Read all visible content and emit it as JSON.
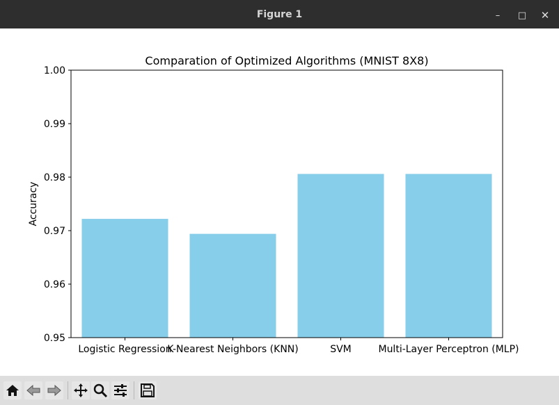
{
  "window": {
    "title": "Figure 1",
    "minimize_symbol": "–",
    "maximize_symbol": "□",
    "close_symbol": "✕"
  },
  "chart_data": {
    "type": "bar",
    "title": "Comparation of Optimized Algorithms (MNIST 8X8)",
    "xlabel": "",
    "ylabel": "Accuracy",
    "categories": [
      "Logistic Regression",
      "K-Nearest Neighbors (KNN)",
      "SVM",
      "Multi-Layer Perceptron (MLP)"
    ],
    "values": [
      0.9722,
      0.9694,
      0.9806,
      0.9806
    ],
    "ylim": [
      0.95,
      1.0
    ],
    "yticks": [
      "0.95",
      "0.96",
      "0.97",
      "0.98",
      "0.99",
      "1.00"
    ],
    "bar_color": "#87ceeb",
    "grid": false
  },
  "toolbar": {
    "buttons": [
      {
        "name": "home-button",
        "icon": "home-icon"
      },
      {
        "name": "back-button",
        "icon": "arrow-left-icon"
      },
      {
        "name": "forward-button",
        "icon": "arrow-right-icon"
      },
      {
        "name": "pan-button",
        "icon": "move-icon"
      },
      {
        "name": "zoom-button",
        "icon": "magnifier-icon"
      },
      {
        "name": "configure-subplots-button",
        "icon": "sliders-icon"
      },
      {
        "name": "save-button",
        "icon": "floppy-disk-icon"
      }
    ]
  }
}
